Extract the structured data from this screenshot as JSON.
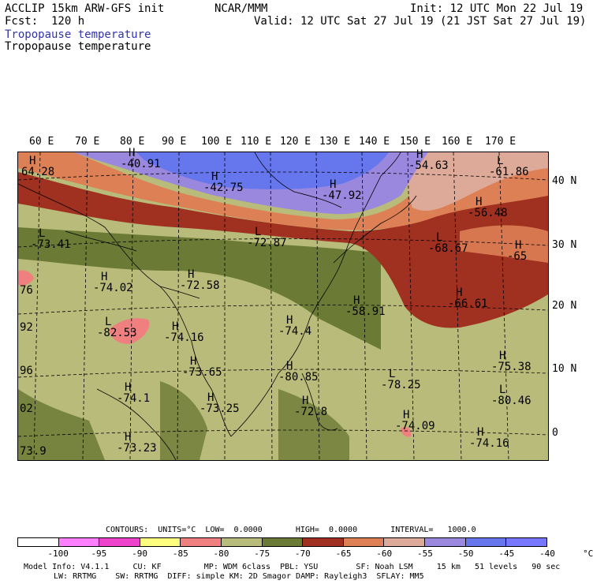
{
  "header": {
    "title_left": "ACCLIP 15km ARW-GFS init",
    "title_center": "NCAR/MMM",
    "init": "Init: 12 UTC Mon 22 Jul 19",
    "fcst": "Fcst:  120 h",
    "valid": "Valid: 12 UTC Sat 27 Jul 19 (21 JST Sat 27 Jul 19)",
    "field_blue": "Tropopause temperature",
    "field_black": "Tropopause temperature"
  },
  "map": {
    "lon_labels": [
      "60 E",
      "70 E",
      "80 E",
      "90 E",
      "100 E",
      "110 E",
      "120 E",
      "130 E",
      "140 E",
      "150 E",
      "160 E",
      "170 E"
    ],
    "lat_labels": [
      "40 N",
      "30 N",
      "20 N",
      "10 N",
      "0"
    ],
    "markers": [
      {
        "type": "H",
        "value": "64.28"
      },
      {
        "type": "H",
        "value": "-40.91"
      },
      {
        "type": "H",
        "value": "-42.75"
      },
      {
        "type": "H",
        "value": "-47.92"
      },
      {
        "type": "H",
        "value": "-54.63"
      },
      {
        "type": "L",
        "value": "-61.86"
      },
      {
        "type": "H",
        "value": "-56.48"
      },
      {
        "type": "L",
        "value": "-73.41"
      },
      {
        "type": "L",
        "value": "-72.87"
      },
      {
        "type": "L",
        "value": "-68.67"
      },
      {
        "type": "H",
        "value": "-65"
      },
      {
        "type": "H",
        "value": "-74.02"
      },
      {
        "type": "H",
        "value": "-72.58"
      },
      {
        "type": "H",
        "value": "-66.61"
      },
      {
        "type": "H",
        "value": "-58.91"
      },
      {
        "type": "L",
        "value": "-82.53"
      },
      {
        "type": "H",
        "value": "-74.16"
      },
      {
        "type": "H",
        "value": "-74.4"
      },
      {
        "type": "H",
        "value": "-73.65"
      },
      {
        "type": "H",
        "value": "-80.85"
      },
      {
        "type": "L",
        "value": "-78.25"
      },
      {
        "type": "H",
        "value": "-75.38"
      },
      {
        "type": "H",
        "value": "-74.1"
      },
      {
        "type": "H",
        "value": "-73.25"
      },
      {
        "type": "H",
        "value": "-72.8"
      },
      {
        "type": "L",
        "value": "-80.46"
      },
      {
        "type": "H",
        "value": "-74.09"
      },
      {
        "type": "H",
        "value": "-74.16"
      },
      {
        "type": "H",
        "value": "-73.23"
      }
    ],
    "edge_labels": [
      "76",
      "92",
      "96",
      "02",
      "73.9"
    ]
  },
  "legend": {
    "contours": "CONTOURS:  UNITS=°C  LOW=  0.0000       HIGH=  0.0000       INTERVAL=   1000.0",
    "colors": [
      "#ffffff",
      "#ff7fff",
      "#ee44cc",
      "#ffff7f",
      "#f08080",
      "#b8bb7a",
      "#6b7a35",
      "#a03020",
      "#dd8055",
      "#ddaa99",
      "#9988dd",
      "#6677ee",
      "#7777ff"
    ],
    "ticks": [
      "-100",
      "-95",
      "-90",
      "-85",
      "-80",
      "-75",
      "-70",
      "-65",
      "-60",
      "-55",
      "-50",
      "-45",
      "-40",
      "°C"
    ]
  },
  "model_info": {
    "line1": "Model Info: V4.1.1     CU: KF         MP: WDM 6class  PBL: YSU        SF: Noah LSM     15 km   51 levels   90 sec",
    "line2": "LW: RRTMG    SW: RRTMG  DIFF: simple KM: 2D Smagor DAMP: Rayleigh3  SFLAY: MM5"
  }
}
